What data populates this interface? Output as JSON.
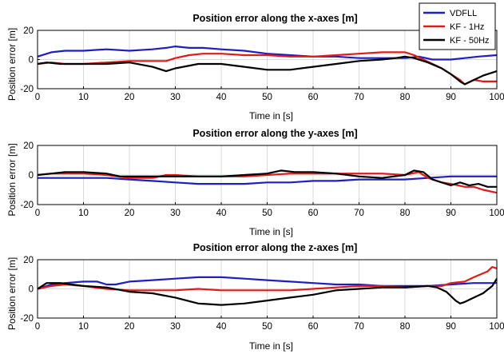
{
  "chart_data": [
    {
      "type": "line",
      "title": "Position error along the x-axes [m]",
      "xlabel": "Time in [s]",
      "ylabel": "Position error [m]",
      "xlim": [
        0,
        100
      ],
      "ylim": [
        -20,
        20
      ],
      "xticks": [
        "0",
        "10",
        "20",
        "30",
        "40",
        "50",
        "60",
        "70",
        "80",
        "90",
        "100"
      ],
      "yticks": [
        "-20",
        "0",
        "20"
      ],
      "grid": true,
      "legend": "top-right",
      "series": [
        {
          "name": "VDFLL",
          "color": "#1f1fbf",
          "x": [
            0,
            3,
            6,
            10,
            15,
            20,
            25,
            28,
            30,
            33,
            36,
            40,
            45,
            50,
            55,
            60,
            65,
            70,
            75,
            80,
            83,
            86,
            90,
            93,
            96,
            100
          ],
          "y": [
            2,
            5,
            6,
            6,
            7,
            6,
            7,
            8,
            9,
            8,
            8,
            7,
            6,
            4,
            3,
            2,
            2,
            1,
            1,
            1,
            2,
            0,
            0,
            1,
            2,
            3
          ]
        },
        {
          "name": "KF - 1Hz",
          "color": "#e01b1b",
          "x": [
            0,
            3,
            6,
            10,
            15,
            20,
            25,
            28,
            30,
            33,
            36,
            40,
            45,
            50,
            55,
            60,
            65,
            70,
            75,
            80,
            82,
            84,
            86,
            88,
            90,
            92,
            93,
            95,
            97,
            100
          ],
          "y": [
            -3,
            -2,
            -3,
            -3,
            -2,
            -1,
            -1,
            -1,
            1,
            3,
            4,
            4,
            3,
            3,
            2,
            2,
            3,
            4,
            5,
            5,
            3,
            0,
            -3,
            -6,
            -10,
            -14,
            -17,
            -14,
            -15,
            -15
          ]
        },
        {
          "name": "KF - 50Hz",
          "color": "#000000",
          "x": [
            0,
            2,
            5,
            10,
            15,
            20,
            25,
            28,
            30,
            35,
            40,
            45,
            50,
            55,
            60,
            65,
            70,
            75,
            78,
            80,
            82,
            85,
            88,
            90,
            92,
            93,
            95,
            97,
            100
          ],
          "y": [
            -3,
            -2,
            -3,
            -3,
            -3,
            -2,
            -5,
            -8,
            -6,
            -3,
            -3,
            -5,
            -7,
            -7,
            -5,
            -3,
            -1,
            0,
            1,
            2,
            1,
            -2,
            -6,
            -10,
            -15,
            -17,
            -14,
            -11,
            -8
          ]
        }
      ]
    },
    {
      "type": "line",
      "title": "Position error along the y-axes [m]",
      "xlabel": "Time in [s]",
      "ylabel": "Position error [m]",
      "xlim": [
        0,
        100
      ],
      "ylim": [
        -20,
        20
      ],
      "xticks": [
        "0",
        "10",
        "20",
        "30",
        "40",
        "50",
        "60",
        "70",
        "80",
        "90",
        "100"
      ],
      "yticks": [
        "-20",
        "0",
        "20"
      ],
      "grid": true,
      "series": [
        {
          "name": "VDFLL",
          "color": "#1f1fbf",
          "x": [
            0,
            5,
            10,
            15,
            20,
            25,
            30,
            35,
            40,
            45,
            50,
            55,
            60,
            65,
            70,
            75,
            80,
            85,
            90,
            95,
            100
          ],
          "y": [
            -2,
            -2,
            -2,
            -2,
            -3,
            -4,
            -5,
            -6,
            -6,
            -6,
            -5,
            -5,
            -4,
            -4,
            -3,
            -3,
            -3,
            -2,
            -1,
            -1,
            -1
          ]
        },
        {
          "name": "KF - 1Hz",
          "color": "#e01b1b",
          "x": [
            0,
            3,
            6,
            10,
            15,
            20,
            25,
            28,
            30,
            35,
            40,
            45,
            50,
            55,
            60,
            65,
            70,
            75,
            80,
            83,
            85,
            88,
            90,
            93,
            95,
            97,
            100
          ],
          "y": [
            0,
            1,
            1,
            1,
            0,
            -2,
            -2,
            0,
            0,
            -1,
            -1,
            -1,
            0,
            1,
            1,
            1,
            1,
            1,
            0,
            2,
            -2,
            -5,
            -6,
            -8,
            -8,
            -10,
            -12
          ]
        },
        {
          "name": "KF - 50Hz",
          "color": "#000000",
          "x": [
            0,
            3,
            6,
            10,
            15,
            18,
            22,
            25,
            30,
            35,
            40,
            45,
            50,
            53,
            56,
            60,
            65,
            70,
            75,
            80,
            82,
            84,
            86,
            88,
            90,
            92,
            94,
            96,
            98,
            100
          ],
          "y": [
            0,
            1,
            2,
            2,
            1,
            -1,
            -1,
            -1,
            -1,
            -1,
            -1,
            0,
            1,
            3,
            2,
            2,
            1,
            -1,
            -2,
            0,
            3,
            2,
            -3,
            -5,
            -7,
            -5,
            -7,
            -6,
            -8,
            -8
          ]
        }
      ]
    },
    {
      "type": "line",
      "title": "Position error along the z-axes [m]",
      "xlabel": "Time in [s]",
      "ylabel": "Position error [m]",
      "xlim": [
        0,
        100
      ],
      "ylim": [
        -20,
        20
      ],
      "xticks": [
        "0",
        "10",
        "20",
        "30",
        "40",
        "50",
        "60",
        "70",
        "80",
        "90",
        "100"
      ],
      "yticks": [
        "-20",
        "0",
        "20"
      ],
      "grid": true,
      "series": [
        {
          "name": "VDFLL",
          "color": "#1f1fbf",
          "x": [
            0,
            3,
            6,
            10,
            13,
            15,
            17,
            20,
            25,
            30,
            35,
            40,
            45,
            50,
            55,
            60,
            65,
            70,
            75,
            80,
            85,
            90,
            95,
            100
          ],
          "y": [
            0,
            3,
            4,
            5,
            5,
            3,
            3,
            5,
            6,
            7,
            8,
            8,
            7,
            6,
            5,
            4,
            3,
            3,
            2,
            2,
            2,
            3,
            4,
            4
          ]
        },
        {
          "name": "KF - 1Hz",
          "color": "#e01b1b",
          "x": [
            0,
            3,
            6,
            10,
            15,
            20,
            25,
            30,
            35,
            40,
            45,
            50,
            55,
            60,
            65,
            70,
            75,
            80,
            85,
            88,
            90,
            93,
            95,
            98,
            99,
            100
          ],
          "y": [
            0,
            2,
            3,
            2,
            0,
            -1,
            -1,
            -1,
            0,
            -1,
            -1,
            -1,
            -1,
            0,
            1,
            2,
            2,
            1,
            2,
            2,
            4,
            5,
            8,
            12,
            15,
            14
          ]
        },
        {
          "name": "KF - 50Hz",
          "color": "#000000",
          "x": [
            0,
            2,
            5,
            10,
            15,
            20,
            25,
            30,
            35,
            40,
            45,
            50,
            55,
            60,
            65,
            70,
            75,
            78,
            80,
            85,
            87,
            89,
            91,
            92,
            93,
            95,
            97,
            99,
            100
          ],
          "y": [
            0,
            4,
            4,
            2,
            1,
            -2,
            -3,
            -6,
            -10,
            -11,
            -10,
            -8,
            -6,
            -4,
            -1,
            0,
            1,
            1,
            1,
            2,
            1,
            -2,
            -8,
            -10,
            -9,
            -6,
            -3,
            2,
            7
          ]
        }
      ]
    }
  ]
}
